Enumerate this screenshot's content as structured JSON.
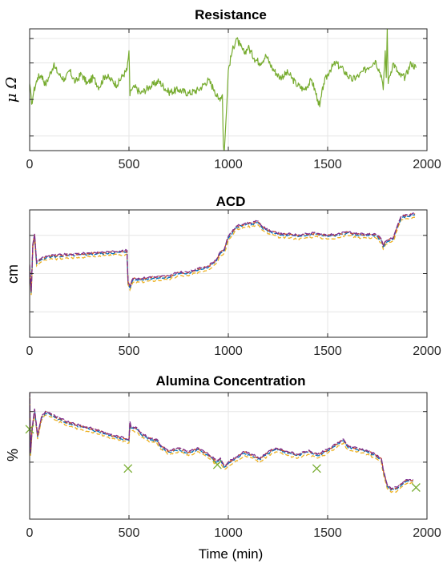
{
  "colors": {
    "resistance": "#77AC30",
    "blue": "#0072BD",
    "orange": "#D95319",
    "yellow": "#EDB120",
    "purple": "#7E2F8E",
    "cross": "#77AC30",
    "grid": "#e6e6e6",
    "axis": "#262626"
  },
  "chart_data": [
    {
      "type": "line",
      "title": "Resistance",
      "ylabel": "μ Ω",
      "xlabel": "",
      "xlim": [
        0,
        2000
      ],
      "ylim": [
        0,
        1
      ],
      "x_ticks": [
        0,
        500,
        1000,
        1500,
        2000
      ],
      "x_tick_labels": [
        "0",
        "500",
        "1000",
        "1500",
        "2000"
      ],
      "y_ticks": [
        0.12,
        0.42,
        0.72,
        0.92
      ],
      "y_tick_labels": [
        "",
        "",
        "",
        ""
      ],
      "grid": true,
      "series": [
        {
          "x": [
            0,
            10,
            20,
            40,
            60,
            80,
            100,
            120,
            150,
            180,
            200,
            230,
            260,
            290,
            320,
            350,
            380,
            410,
            440,
            470,
            490,
            500,
            505,
            510,
            530,
            560,
            600,
            650,
            700,
            750,
            800,
            850,
            900,
            930,
            950,
            970,
            975,
            980,
            990,
            1000,
            1020,
            1040,
            1060,
            1080,
            1100,
            1130,
            1160,
            1190,
            1220,
            1260,
            1300,
            1340,
            1380,
            1420,
            1450,
            1460,
            1480,
            1510,
            1540,
            1580,
            1620,
            1660,
            1700,
            1740,
            1770,
            1780,
            1790,
            1795,
            1800,
            1805,
            1810,
            1830,
            1860,
            1890,
            1920,
            1945
          ],
          "y": [
            0.55,
            0.38,
            0.48,
            0.6,
            0.62,
            0.54,
            0.62,
            0.7,
            0.62,
            0.58,
            0.66,
            0.56,
            0.63,
            0.55,
            0.6,
            0.52,
            0.62,
            0.58,
            0.54,
            0.62,
            0.66,
            0.82,
            0.45,
            0.5,
            0.52,
            0.47,
            0.52,
            0.57,
            0.48,
            0.5,
            0.47,
            0.5,
            0.58,
            0.5,
            0.42,
            0.46,
            0.05,
            0.0,
            0.3,
            0.66,
            0.82,
            0.92,
            0.86,
            0.8,
            0.85,
            0.76,
            0.72,
            0.78,
            0.68,
            0.6,
            0.64,
            0.55,
            0.5,
            0.58,
            0.42,
            0.36,
            0.55,
            0.66,
            0.72,
            0.66,
            0.58,
            0.62,
            0.68,
            0.74,
            0.62,
            0.5,
            0.82,
            0.6,
            1.0,
            0.55,
            0.6,
            0.72,
            0.62,
            0.6,
            0.72,
            0.68
          ]
        }
      ]
    },
    {
      "type": "line",
      "title": "ACD",
      "ylabel": "cm",
      "xlabel": "",
      "xlim": [
        0,
        2000
      ],
      "ylim": [
        0,
        1
      ],
      "x_ticks": [
        0,
        500,
        1000,
        1500,
        2000
      ],
      "x_tick_labels": [
        "0",
        "500",
        "1000",
        "1500",
        "2000"
      ],
      "y_ticks": [
        0.2,
        0.5,
        0.8
      ],
      "y_tick_labels": [
        "",
        "",
        ""
      ],
      "grid": true,
      "series": [
        {
          "x": [
            0,
            8,
            16,
            25,
            35,
            50,
            70,
            100,
            200,
            300,
            400,
            490,
            495,
            505,
            520,
            560,
            600,
            700,
            750,
            800,
            850,
            900,
            940,
            960,
            980,
            1000,
            1040,
            1080,
            1120,
            1150,
            1170,
            1200,
            1230,
            1260,
            1300,
            1350,
            1400,
            1440,
            1460,
            1500,
            1550,
            1600,
            1650,
            1700,
            1740,
            1770,
            1780,
            1790,
            1800,
            1830,
            1850,
            1870,
            1900,
            1940
          ],
          "y": [
            0.56,
            0.35,
            0.72,
            0.8,
            0.58,
            0.6,
            0.62,
            0.63,
            0.64,
            0.65,
            0.66,
            0.67,
            0.43,
            0.39,
            0.45,
            0.45,
            0.46,
            0.47,
            0.5,
            0.5,
            0.53,
            0.55,
            0.6,
            0.66,
            0.68,
            0.78,
            0.86,
            0.88,
            0.89,
            0.9,
            0.86,
            0.83,
            0.82,
            0.8,
            0.8,
            0.79,
            0.8,
            0.81,
            0.8,
            0.79,
            0.8,
            0.82,
            0.8,
            0.8,
            0.8,
            0.76,
            0.71,
            0.74,
            0.75,
            0.77,
            0.86,
            0.94,
            0.95,
            0.96
          ]
        }
      ]
    },
    {
      "type": "line",
      "title": "Alumina Concentration",
      "ylabel": "%",
      "xlabel": "Time (min)",
      "xlim": [
        0,
        2000
      ],
      "ylim": [
        0,
        1
      ],
      "x_ticks": [
        0,
        500,
        1000,
        1500,
        2000
      ],
      "x_tick_labels": [
        "0",
        "500",
        "1000",
        "1500",
        "2000"
      ],
      "y_ticks": [
        0.45,
        0.85
      ],
      "y_tick_labels": [
        "",
        ""
      ],
      "grid": true,
      "series": [
        {
          "x": [
            0,
            5,
            12,
            25,
            40,
            60,
            80,
            100,
            130,
            160,
            200,
            250,
            300,
            350,
            400,
            450,
            500,
            505,
            510,
            540,
            560,
            600,
            640,
            660,
            700,
            750,
            800,
            850,
            900,
            940,
            960,
            980,
            1000,
            1040,
            1080,
            1120,
            1160,
            1200,
            1240,
            1300,
            1350,
            1400,
            1450,
            1500,
            1540,
            1580,
            1600,
            1650,
            1700,
            1740,
            1770,
            1780,
            1790,
            1800,
            1820,
            1850,
            1880,
            1900,
            1930
          ],
          "y": [
            1.0,
            0.52,
            0.7,
            0.86,
            0.65,
            0.8,
            0.84,
            0.83,
            0.8,
            0.78,
            0.75,
            0.73,
            0.71,
            0.69,
            0.66,
            0.64,
            0.62,
            0.76,
            0.72,
            0.71,
            0.67,
            0.63,
            0.62,
            0.57,
            0.53,
            0.55,
            0.52,
            0.55,
            0.5,
            0.45,
            0.47,
            0.41,
            0.44,
            0.48,
            0.52,
            0.5,
            0.47,
            0.52,
            0.55,
            0.52,
            0.5,
            0.53,
            0.5,
            0.54,
            0.58,
            0.62,
            0.57,
            0.55,
            0.53,
            0.5,
            0.47,
            0.38,
            0.32,
            0.26,
            0.23,
            0.24,
            0.28,
            0.3,
            0.3
          ]
        }
      ],
      "markers": {
        "symbol": "x",
        "x": [
          0,
          495,
          945,
          1445,
          1945
        ],
        "y": [
          0.71,
          0.4,
          0.43,
          0.4,
          0.25
        ]
      }
    }
  ]
}
